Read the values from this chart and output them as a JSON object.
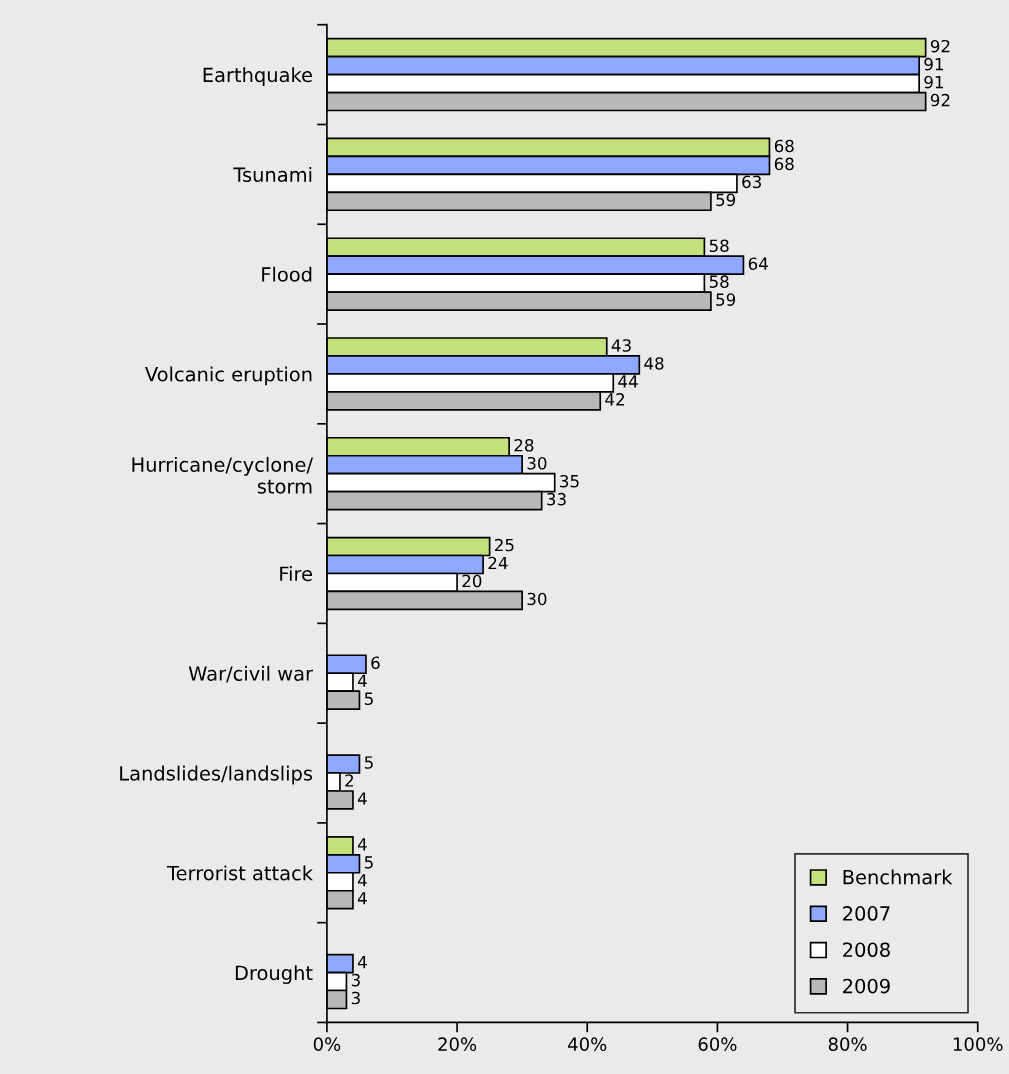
{
  "chart_data": {
    "type": "bar",
    "orientation": "horizontal",
    "categories": [
      "Earthquake",
      "Tsunami",
      "Flood",
      "Volcanic eruption",
      "Hurricane/cyclone/\nstorm",
      "Fire",
      "War/civil war",
      "Landslides/landslips",
      "Terrorist attack",
      "Drought"
    ],
    "series": [
      {
        "name": "Benchmark",
        "color": "#c4e07a",
        "values": [
          92,
          68,
          58,
          43,
          28,
          25,
          null,
          null,
          4,
          null
        ]
      },
      {
        "name": "2007",
        "color": "#8fa8ff",
        "values": [
          91,
          68,
          64,
          48,
          30,
          24,
          6,
          5,
          5,
          4
        ]
      },
      {
        "name": "2008",
        "color": "#ffffff",
        "values": [
          91,
          63,
          58,
          44,
          35,
          20,
          4,
          2,
          4,
          3
        ]
      },
      {
        "name": "2009",
        "color": "#b8b8b8",
        "values": [
          92,
          59,
          59,
          42,
          33,
          30,
          5,
          4,
          4,
          3
        ]
      }
    ],
    "xlim": [
      0,
      100
    ],
    "xticks": [
      {
        "value": 0,
        "label": "0%"
      },
      {
        "value": 20,
        "label": "20%"
      },
      {
        "value": 40,
        "label": "40%"
      },
      {
        "value": 60,
        "label": "60%"
      },
      {
        "value": 80,
        "label": "80%"
      },
      {
        "value": 100,
        "label": "100%"
      }
    ],
    "data_labels": true,
    "grid": false,
    "legend": "bottom right"
  }
}
